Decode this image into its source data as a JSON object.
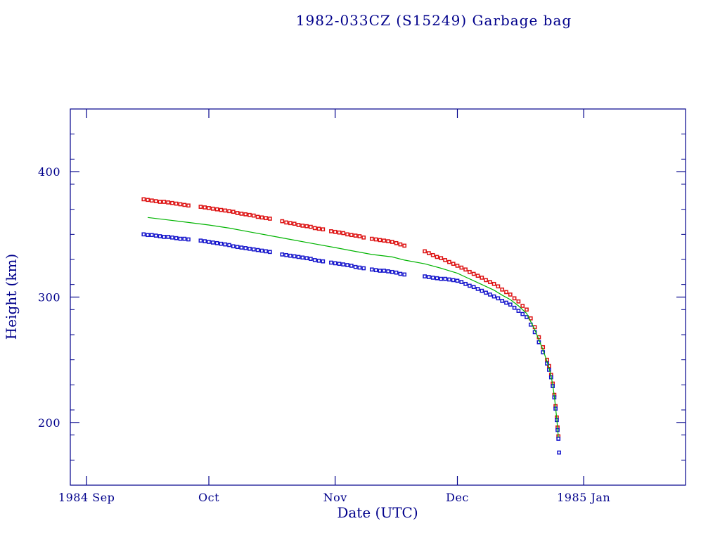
{
  "colors": {
    "background": "#ffffff",
    "axis": "#00008b",
    "text": "#00008b",
    "apogee": "#dd1111",
    "perigee": "#1515cc",
    "mean": "#00b400"
  },
  "chart_data": {
    "type": "scatter",
    "title": "1982-033CZ (S15249) Garbage bag",
    "xlabel": "Date (UTC)",
    "ylabel": "Height (km)",
    "x_unit": "days since 1984-09-01",
    "xlim": [
      -4,
      147
    ],
    "ylim": [
      150,
      450
    ],
    "grid": false,
    "legend": "none",
    "x_ticks": [
      {
        "day": 0,
        "label": "1984 Sep"
      },
      {
        "day": 30,
        "label": "Oct"
      },
      {
        "day": 61,
        "label": "Nov"
      },
      {
        "day": 91,
        "label": "Dec"
      },
      {
        "day": 122,
        "label": "1985 Jan"
      }
    ],
    "y_ticks": [
      200,
      300,
      400
    ],
    "y_minor_step": 20,
    "series": [
      {
        "id": "apogee-point",
        "name": "apogee height (red squares)",
        "type": "scatter",
        "marker": "square",
        "color": "#dd1111",
        "points": [
          [
            14,
            378
          ],
          [
            15,
            377.5
          ],
          [
            16,
            377
          ],
          [
            17,
            376.5
          ],
          [
            18,
            376
          ],
          [
            19,
            376
          ],
          [
            20,
            375.5
          ],
          [
            21,
            375
          ],
          [
            22,
            374.5
          ],
          [
            23,
            374
          ],
          [
            24,
            373.5
          ],
          [
            25,
            373
          ],
          [
            28,
            372
          ],
          [
            29,
            371.5
          ],
          [
            30,
            371
          ],
          [
            31,
            370.5
          ],
          [
            32,
            370
          ],
          [
            33,
            369.5
          ],
          [
            34,
            369
          ],
          [
            35,
            368.5
          ],
          [
            36,
            368
          ],
          [
            37,
            367
          ],
          [
            38,
            366.5
          ],
          [
            39,
            366
          ],
          [
            40,
            365.5
          ],
          [
            41,
            365
          ],
          [
            42,
            364
          ],
          [
            43,
            363.5
          ],
          [
            44,
            363
          ],
          [
            45,
            362.5
          ],
          [
            48,
            360.5
          ],
          [
            49,
            359.5
          ],
          [
            50,
            359
          ],
          [
            51,
            358.5
          ],
          [
            52,
            357.5
          ],
          [
            53,
            357
          ],
          [
            54,
            356.5
          ],
          [
            55,
            356
          ],
          [
            56,
            355
          ],
          [
            57,
            354.5
          ],
          [
            58,
            354
          ],
          [
            60,
            352.5
          ],
          [
            61,
            352
          ],
          [
            62,
            351.5
          ],
          [
            63,
            351
          ],
          [
            64,
            350
          ],
          [
            65,
            349.5
          ],
          [
            66,
            349
          ],
          [
            67,
            348.5
          ],
          [
            68,
            347.5
          ],
          [
            70,
            346.5
          ],
          [
            71,
            346
          ],
          [
            72,
            345.5
          ],
          [
            73,
            345
          ],
          [
            74,
            344.5
          ],
          [
            75,
            344
          ],
          [
            76,
            343
          ],
          [
            77,
            342
          ],
          [
            78,
            341
          ],
          [
            83,
            336.5
          ],
          [
            84,
            335
          ],
          [
            85,
            333.5
          ],
          [
            86,
            332
          ],
          [
            87,
            331
          ],
          [
            88,
            329.5
          ],
          [
            89,
            328
          ],
          [
            90,
            326.5
          ],
          [
            91,
            325
          ],
          [
            92,
            323.5
          ],
          [
            93,
            322
          ],
          [
            94,
            320
          ],
          [
            95,
            318.5
          ],
          [
            96,
            317
          ],
          [
            97,
            315.5
          ],
          [
            98,
            313.5
          ],
          [
            99,
            312
          ],
          [
            100,
            310.5
          ],
          [
            101,
            308.5
          ],
          [
            102,
            306
          ],
          [
            103,
            304
          ],
          [
            104,
            302
          ],
          [
            105,
            299
          ],
          [
            106,
            296.5
          ],
          [
            107,
            293
          ],
          [
            108,
            290
          ],
          [
            109,
            283
          ],
          [
            110,
            276
          ],
          [
            111,
            268
          ],
          [
            112,
            260
          ],
          [
            113,
            250
          ],
          [
            113.5,
            245
          ],
          [
            114,
            238
          ],
          [
            114.4,
            231
          ],
          [
            114.8,
            222
          ],
          [
            115.1,
            213
          ],
          [
            115.4,
            204
          ],
          [
            115.6,
            196
          ],
          [
            115.8,
            189
          ]
        ]
      },
      {
        "id": "perigee-point",
        "name": "perigee height (blue squares)",
        "type": "scatter",
        "marker": "square",
        "color": "#1515cc",
        "points": [
          [
            14,
            350
          ],
          [
            15,
            349.5
          ],
          [
            16,
            349.5
          ],
          [
            17,
            349
          ],
          [
            18,
            348.5
          ],
          [
            19,
            348
          ],
          [
            20,
            348
          ],
          [
            21,
            347.5
          ],
          [
            22,
            347
          ],
          [
            23,
            346.5
          ],
          [
            24,
            346.5
          ],
          [
            25,
            346
          ],
          [
            28,
            345
          ],
          [
            29,
            344.5
          ],
          [
            30,
            344
          ],
          [
            31,
            343.5
          ],
          [
            32,
            343
          ],
          [
            33,
            342.5
          ],
          [
            34,
            342
          ],
          [
            35,
            341.5
          ],
          [
            36,
            340.5
          ],
          [
            37,
            340
          ],
          [
            38,
            339.5
          ],
          [
            39,
            339
          ],
          [
            40,
            338.5
          ],
          [
            41,
            338
          ],
          [
            42,
            337.5
          ],
          [
            43,
            337
          ],
          [
            44,
            336.5
          ],
          [
            45,
            336
          ],
          [
            48,
            334
          ],
          [
            49,
            333.5
          ],
          [
            50,
            333
          ],
          [
            51,
            332.5
          ],
          [
            52,
            332
          ],
          [
            53,
            331.5
          ],
          [
            54,
            331
          ],
          [
            55,
            330.5
          ],
          [
            56,
            329.5
          ],
          [
            57,
            329
          ],
          [
            58,
            328.5
          ],
          [
            60,
            327.5
          ],
          [
            61,
            327
          ],
          [
            62,
            326.5
          ],
          [
            63,
            326
          ],
          [
            64,
            325.5
          ],
          [
            65,
            325
          ],
          [
            66,
            324
          ],
          [
            67,
            323.5
          ],
          [
            68,
            323
          ],
          [
            70,
            322
          ],
          [
            71,
            321.5
          ],
          [
            72,
            321
          ],
          [
            73,
            321
          ],
          [
            74,
            320.5
          ],
          [
            75,
            320
          ],
          [
            76,
            319.5
          ],
          [
            77,
            318.5
          ],
          [
            78,
            318
          ],
          [
            83,
            316.5
          ],
          [
            84,
            316
          ],
          [
            85,
            315.5
          ],
          [
            86,
            315
          ],
          [
            87,
            314.5
          ],
          [
            88,
            314.5
          ],
          [
            89,
            314
          ],
          [
            90,
            313.5
          ],
          [
            91,
            313
          ],
          [
            92,
            312
          ],
          [
            93,
            310.5
          ],
          [
            94,
            309
          ],
          [
            95,
            308
          ],
          [
            96,
            306.5
          ],
          [
            97,
            305
          ],
          [
            98,
            303.5
          ],
          [
            99,
            302
          ],
          [
            100,
            300.5
          ],
          [
            101,
            299
          ],
          [
            102,
            297
          ],
          [
            103,
            295.5
          ],
          [
            104,
            294
          ],
          [
            105,
            291.5
          ],
          [
            106,
            289
          ],
          [
            107,
            286.5
          ],
          [
            108,
            284
          ],
          [
            109,
            278
          ],
          [
            110,
            272
          ],
          [
            111,
            264
          ],
          [
            112,
            256
          ],
          [
            113,
            247
          ],
          [
            113.5,
            242
          ],
          [
            114,
            236
          ],
          [
            114.4,
            229
          ],
          [
            114.8,
            220
          ],
          [
            115.1,
            211
          ],
          [
            115.4,
            202
          ],
          [
            115.6,
            194
          ],
          [
            115.8,
            187
          ],
          [
            115.95,
            176
          ]
        ]
      },
      {
        "id": "mean-line",
        "name": "mean height (green line)",
        "type": "line",
        "color": "#00b400",
        "points": [
          [
            15,
            363.5
          ],
          [
            20,
            361.5
          ],
          [
            25,
            359.5
          ],
          [
            30,
            357.5
          ],
          [
            35,
            355
          ],
          [
            40,
            352
          ],
          [
            45,
            349
          ],
          [
            50,
            346
          ],
          [
            55,
            343
          ],
          [
            61,
            339.5
          ],
          [
            65,
            337
          ],
          [
            70,
            334
          ],
          [
            75,
            332
          ],
          [
            78,
            329.5
          ],
          [
            83,
            326.5
          ],
          [
            87,
            323
          ],
          [
            91,
            319
          ],
          [
            93,
            316
          ],
          [
            95,
            313
          ],
          [
            97,
            310
          ],
          [
            100,
            305.5
          ],
          [
            102,
            301.5
          ],
          [
            104,
            298
          ],
          [
            106,
            293
          ],
          [
            108,
            287
          ],
          [
            109,
            280.5
          ],
          [
            110,
            274
          ],
          [
            111,
            266
          ],
          [
            112,
            258
          ],
          [
            113,
            248.5
          ],
          [
            113.5,
            243.5
          ],
          [
            114,
            237
          ],
          [
            114.4,
            230
          ],
          [
            114.8,
            221
          ],
          [
            115.1,
            212
          ],
          [
            115.4,
            203
          ],
          [
            115.6,
            195
          ],
          [
            115.8,
            188
          ]
        ]
      }
    ]
  }
}
